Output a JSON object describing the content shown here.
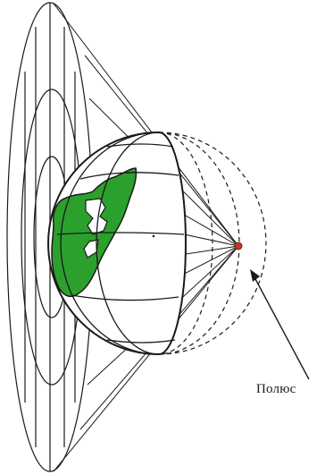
{
  "labels": {
    "pole": "Полюс"
  },
  "colors": {
    "background": "#ffffff",
    "lines": "#1a1a1a",
    "land": "#2ca02c",
    "pole_point": "#c0392b",
    "globe_fill": "#ffffff"
  }
}
